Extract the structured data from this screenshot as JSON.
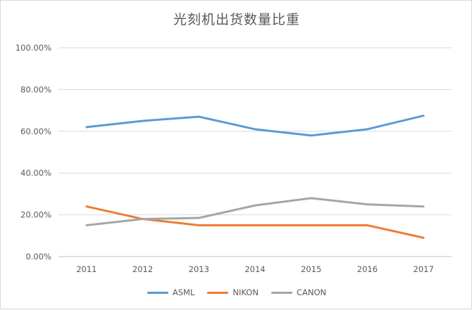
{
  "chart_data": {
    "type": "line",
    "title": "光刻机出货数量比重",
    "xlabel": "",
    "ylabel": "",
    "categories": [
      "2011",
      "2012",
      "2013",
      "2014",
      "2015",
      "2016",
      "2017"
    ],
    "y_ticks": [
      "0.00%",
      "20.00%",
      "40.00%",
      "60.00%",
      "80.00%",
      "100.00%"
    ],
    "ylim": [
      0,
      100
    ],
    "grid": true,
    "legend_position": "bottom",
    "series": [
      {
        "name": "ASML",
        "color": "#5b9bd5",
        "values": [
          62,
          65,
          67,
          61,
          58,
          61,
          67.5
        ]
      },
      {
        "name": "NIKON",
        "color": "#ed7d31",
        "values": [
          24,
          18,
          15,
          15,
          15,
          15,
          9
        ]
      },
      {
        "name": "CANON",
        "color": "#a5a5a5",
        "values": [
          15,
          18,
          18.5,
          24.5,
          28,
          25,
          24
        ]
      }
    ]
  }
}
